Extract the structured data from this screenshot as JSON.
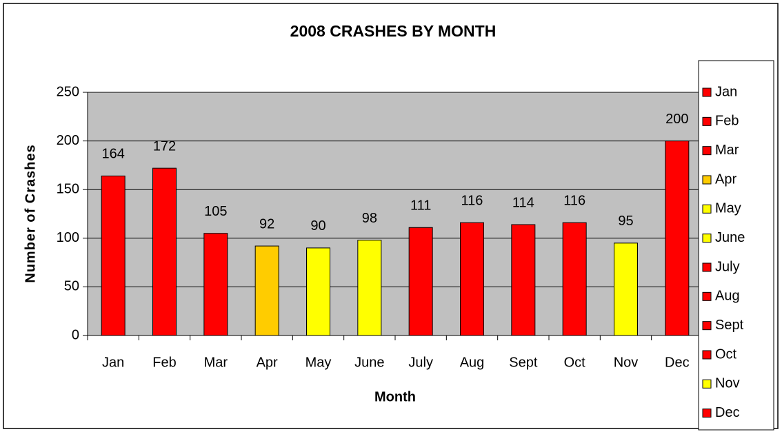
{
  "chart_data": {
    "type": "bar",
    "title": "2008 CRASHES BY MONTH",
    "x_label": "Month",
    "y_label": "Number of Crashes",
    "categories": [
      "Jan",
      "Feb",
      "Mar",
      "Apr",
      "May",
      "June",
      "July",
      "Aug",
      "Sept",
      "Oct",
      "Nov",
      "Dec"
    ],
    "values": [
      164,
      172,
      105,
      92,
      90,
      98,
      111,
      116,
      114,
      116,
      95,
      200
    ],
    "colors": [
      "#ff0000",
      "#ff0000",
      "#ff0000",
      "#ffcc00",
      "#ffff00",
      "#ffff00",
      "#ff0000",
      "#ff0000",
      "#ff0000",
      "#ff0000",
      "#ffff00",
      "#ff0000"
    ],
    "ylim": [
      0,
      250
    ],
    "yticks": [
      0,
      50,
      100,
      150,
      200,
      250
    ],
    "grid": true,
    "legend": "right"
  }
}
